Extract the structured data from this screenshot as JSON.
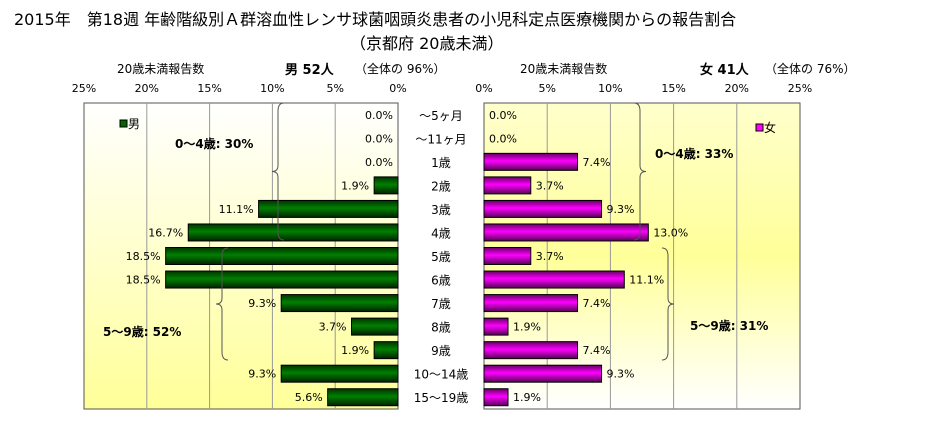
{
  "title": "2015年　第18週 年齢階級別Ａ群溶血性レンサ球菌咽頭炎患者の小児科定点医療機関からの報告割合",
  "subtitle": "（京都府 20歳未満）",
  "male_header": {
    "label": "20歳未満報告数",
    "count": "男  52人",
    "share": "（全体の  96%）"
  },
  "female_header": {
    "label": "20歳未満報告数",
    "count": "女  41人",
    "share": "（全体の  76%）"
  },
  "chart_data": {
    "type": "bar",
    "orientation": "horizontal-pyramid",
    "categories": [
      "～5ヶ月",
      "～11ヶ月",
      "1歳",
      "2歳",
      "3歳",
      "4歳",
      "5歳",
      "6歳",
      "7歳",
      "8歳",
      "9歳",
      "10～14歳",
      "15～19歳"
    ],
    "series": [
      {
        "name": "男",
        "color": "#006600",
        "values": [
          0.0,
          0.0,
          0.0,
          1.9,
          11.1,
          16.7,
          18.5,
          18.5,
          9.3,
          3.7,
          1.9,
          9.3,
          5.6
        ]
      },
      {
        "name": "女",
        "color": "#ff00ff",
        "values": [
          0.0,
          0.0,
          7.4,
          3.7,
          9.3,
          13.0,
          3.7,
          11.1,
          7.4,
          1.9,
          7.4,
          9.3,
          1.9
        ]
      }
    ],
    "xlim": [
      0,
      25
    ],
    "ticks": [
      "0%",
      "5%",
      "10%",
      "15%",
      "20%",
      "25%"
    ],
    "legend_position": "top-outer-corner",
    "annotations": {
      "male": [
        "0～4歳: 30%",
        "5～9歳: 52%"
      ],
      "female": [
        "0～4歳: 33%",
        "5～9歳: 31%"
      ]
    }
  }
}
